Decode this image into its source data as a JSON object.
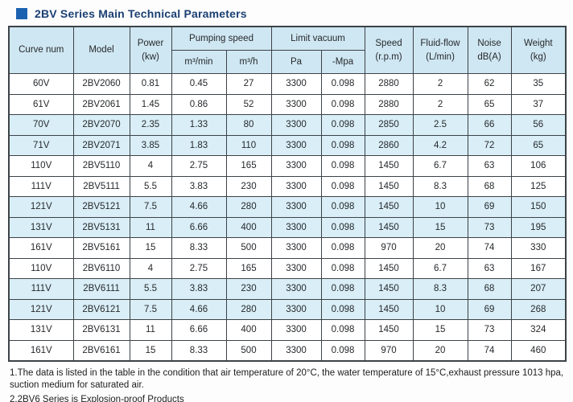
{
  "colors": {
    "accent_square": "#1d62b0",
    "title_text": "#1b3f72",
    "header_bg": "#cfe7f2",
    "row_shade_bg": "#d9eef7",
    "border": "#3c4247"
  },
  "title": "2BV Series Main Technical Parameters",
  "table": {
    "headers": {
      "curve_num": "Curve num",
      "model": "Model",
      "power_line1": "Power",
      "power_line2": "(kw)",
      "pumping_speed": "Pumping speed",
      "pumping_sub1": "m³/min",
      "pumping_sub2": "m³/h",
      "limit_vacuum": "Limit vacuum",
      "vacuum_sub1": "Pa",
      "vacuum_sub2": "-Mpa",
      "speed_line1": "Speed",
      "speed_line2": "(r.p.m)",
      "fluid_line1": "Fluid-flow",
      "fluid_line2": "(L/min)",
      "noise_line1": "Noise",
      "noise_line2": "dB(A)",
      "weight_line1": "Weight",
      "weight_line2": "(kg)"
    },
    "rows": [
      {
        "shaded": false,
        "cells": [
          "60V",
          "2BV2060",
          "0.81",
          "0.45",
          "27",
          "3300",
          "0.098",
          "2880",
          "2",
          "62",
          "35"
        ]
      },
      {
        "shaded": false,
        "cells": [
          "61V",
          "2BV2061",
          "1.45",
          "0.86",
          "52",
          "3300",
          "0.098",
          "2880",
          "2",
          "65",
          "37"
        ]
      },
      {
        "shaded": true,
        "cells": [
          "70V",
          "2BV2070",
          "2.35",
          "1.33",
          "80",
          "3300",
          "0.098",
          "2850",
          "2.5",
          "66",
          "56"
        ]
      },
      {
        "shaded": true,
        "cells": [
          "71V",
          "2BV2071",
          "3.85",
          "1.83",
          "110",
          "3300",
          "0.098",
          "2860",
          "4.2",
          "72",
          "65"
        ]
      },
      {
        "shaded": false,
        "cells": [
          "110V",
          "2BV5110",
          "4",
          "2.75",
          "165",
          "3300",
          "0.098",
          "1450",
          "6.7",
          "63",
          "106"
        ]
      },
      {
        "shaded": false,
        "cells": [
          "111V",
          "2BV5111",
          "5.5",
          "3.83",
          "230",
          "3300",
          "0.098",
          "1450",
          "8.3",
          "68",
          "125"
        ]
      },
      {
        "shaded": true,
        "cells": [
          "121V",
          "2BV5121",
          "7.5",
          "4.66",
          "280",
          "3300",
          "0.098",
          "1450",
          "10",
          "69",
          "150"
        ]
      },
      {
        "shaded": true,
        "cells": [
          "131V",
          "2BV5131",
          "11",
          "6.66",
          "400",
          "3300",
          "0.098",
          "1450",
          "15",
          "73",
          "195"
        ]
      },
      {
        "shaded": false,
        "cells": [
          "161V",
          "2BV5161",
          "15",
          "8.33",
          "500",
          "3300",
          "0.098",
          "970",
          "20",
          "74",
          "330"
        ]
      },
      {
        "shaded": false,
        "cells": [
          "110V",
          "2BV6110",
          "4",
          "2.75",
          "165",
          "3300",
          "0.098",
          "1450",
          "6.7",
          "63",
          "167"
        ]
      },
      {
        "shaded": true,
        "cells": [
          "111V",
          "2BV6111",
          "5.5",
          "3.83",
          "230",
          "3300",
          "0.098",
          "1450",
          "8.3",
          "68",
          "207"
        ]
      },
      {
        "shaded": true,
        "cells": [
          "121V",
          "2BV6121",
          "7.5",
          "4.66",
          "280",
          "3300",
          "0.098",
          "1450",
          "10",
          "69",
          "268"
        ]
      },
      {
        "shaded": false,
        "cells": [
          "131V",
          "2BV6131",
          "11",
          "6.66",
          "400",
          "3300",
          "0.098",
          "1450",
          "15",
          "73",
          "324"
        ]
      },
      {
        "shaded": false,
        "cells": [
          "161V",
          "2BV6161",
          "15",
          "8.33",
          "500",
          "3300",
          "0.098",
          "970",
          "20",
          "74",
          "460"
        ]
      }
    ]
  },
  "notes": {
    "note1": "1.The data is listed in the table in the condition that air temperature of 20°C, the water temperature of 15°C,exhaust pressure 1013 hpa, suction medium for saturated air.",
    "note2": "2.2BV6 Series is Explosion-proof Products"
  }
}
